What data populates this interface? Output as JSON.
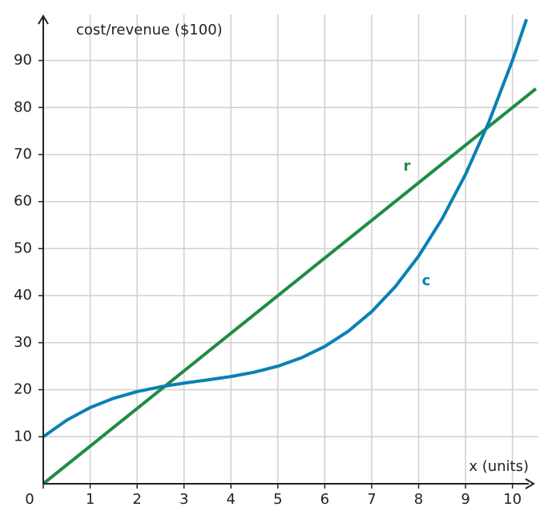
{
  "chart_data": {
    "type": "line",
    "ylabel": "cost/revenue ($100)",
    "xlabel": "x (units)",
    "xlim": [
      0,
      10.45
    ],
    "ylim": [
      0,
      99.8
    ],
    "xticks": [
      0,
      1,
      2,
      3,
      4,
      5,
      6,
      7,
      8,
      9,
      10
    ],
    "yticks": [
      10,
      20,
      30,
      40,
      50,
      60,
      70,
      80,
      90
    ],
    "grid": true,
    "series": [
      {
        "name": "r",
        "color": "#1f8c45",
        "x": [
          0,
          10.5
        ],
        "values": [
          0,
          84
        ]
      },
      {
        "name": "c",
        "color": "#0a80b4",
        "x": [
          0,
          0.5,
          1,
          1.5,
          2,
          2.5,
          3,
          3.5,
          4,
          4.5,
          5,
          5.5,
          6,
          6.5,
          7,
          7.5,
          8,
          8.5,
          9,
          9.5,
          10,
          10.3
        ],
        "values": [
          10,
          13.525,
          16.2,
          18.175,
          19.6,
          20.625,
          21.4,
          22.075,
          22.8,
          23.725,
          25,
          26.775,
          29.2,
          32.425,
          36.6,
          41.875,
          48.4,
          56.325,
          65.8,
          76.975,
          90,
          98.765
        ]
      }
    ]
  }
}
